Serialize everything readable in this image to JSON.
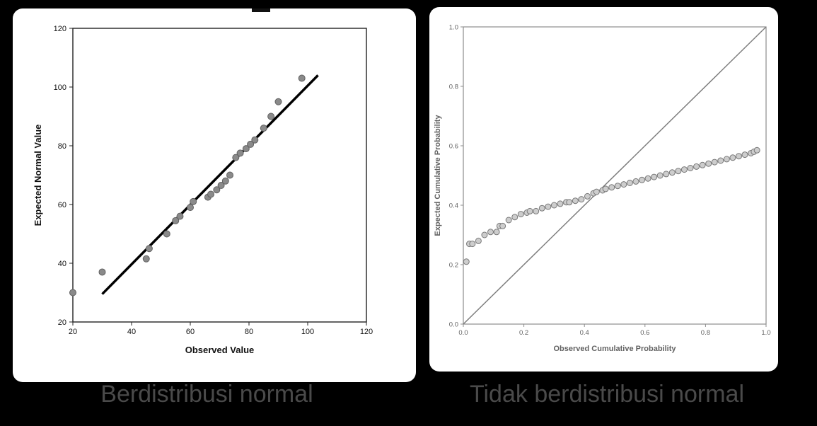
{
  "captions": {
    "left": "Berdistribusi normal",
    "right": "Tidak berdistribusi normal"
  },
  "colors": {
    "background": "#000000",
    "panel": "#ffffff",
    "caption_text": "#4a4a4a"
  },
  "chart_data": [
    {
      "id": "qq-plot",
      "type": "scatter",
      "title": "",
      "xlabel": "Observed Value",
      "ylabel": "Expected Normal Value",
      "xlim": [
        20,
        120
      ],
      "ylim": [
        20,
        120
      ],
      "xticks": [
        "20",
        "40",
        "60",
        "80",
        "100",
        "120"
      ],
      "yticks": [
        "20",
        "40",
        "60",
        "80",
        "100",
        "120"
      ],
      "grid": false,
      "frame_color": "#222222",
      "text_color": "#111111",
      "marker": {
        "fill": "#8a8a8a",
        "stroke": "#606060"
      },
      "fit_line": {
        "from": [
          30,
          29.5
        ],
        "to": [
          103.5,
          104
        ],
        "color": "#000000",
        "width": 3.5
      },
      "points": [
        [
          20,
          30
        ],
        [
          30,
          37
        ],
        [
          45,
          41.5
        ],
        [
          46,
          45
        ],
        [
          52,
          50
        ],
        [
          55,
          54.5
        ],
        [
          56.5,
          56
        ],
        [
          60,
          59
        ],
        [
          61,
          61
        ],
        [
          66,
          62.5
        ],
        [
          67,
          63.5
        ],
        [
          69,
          65
        ],
        [
          70.5,
          66.5
        ],
        [
          72,
          68
        ],
        [
          73.5,
          70
        ],
        [
          75.5,
          76
        ],
        [
          77,
          77.5
        ],
        [
          79,
          79
        ],
        [
          80.5,
          80.5
        ],
        [
          82,
          82
        ],
        [
          85,
          86
        ],
        [
          87.5,
          90
        ],
        [
          90,
          95
        ],
        [
          98,
          103
        ]
      ]
    },
    {
      "id": "pp-plot",
      "type": "scatter",
      "title": "",
      "xlabel": "Observed Cumulative Probability",
      "ylabel": "Expected Cumulative Probability",
      "xlim": [
        0,
        1
      ],
      "ylim": [
        0,
        1
      ],
      "xticks": [
        "0.0",
        "0.2",
        "0.4",
        "0.6",
        "0.8",
        "1.0"
      ],
      "yticks": [
        "0.0",
        "0.2",
        "0.4",
        "0.6",
        "0.8",
        "1.0"
      ],
      "grid": false,
      "frame_color": "#8c8c8c",
      "text_color": "#626262",
      "marker": {
        "fill": "#cdcdcd",
        "stroke": "#787878"
      },
      "fit_line": {
        "from": [
          0,
          0
        ],
        "to": [
          1,
          1
        ],
        "color": "#7d7d7d",
        "width": 1.5
      },
      "points": [
        [
          0.01,
          0.21
        ],
        [
          0.02,
          0.27
        ],
        [
          0.03,
          0.27
        ],
        [
          0.05,
          0.28
        ],
        [
          0.07,
          0.3
        ],
        [
          0.09,
          0.31
        ],
        [
          0.11,
          0.31
        ],
        [
          0.12,
          0.33
        ],
        [
          0.13,
          0.33
        ],
        [
          0.15,
          0.35
        ],
        [
          0.17,
          0.36
        ],
        [
          0.19,
          0.37
        ],
        [
          0.21,
          0.375
        ],
        [
          0.22,
          0.38
        ],
        [
          0.24,
          0.38
        ],
        [
          0.26,
          0.39
        ],
        [
          0.28,
          0.395
        ],
        [
          0.3,
          0.4
        ],
        [
          0.32,
          0.405
        ],
        [
          0.34,
          0.41
        ],
        [
          0.35,
          0.41
        ],
        [
          0.37,
          0.415
        ],
        [
          0.39,
          0.42
        ],
        [
          0.41,
          0.43
        ],
        [
          0.43,
          0.44
        ],
        [
          0.44,
          0.445
        ],
        [
          0.46,
          0.45
        ],
        [
          0.47,
          0.455
        ],
        [
          0.49,
          0.46
        ],
        [
          0.51,
          0.465
        ],
        [
          0.53,
          0.47
        ],
        [
          0.55,
          0.475
        ],
        [
          0.57,
          0.48
        ],
        [
          0.59,
          0.485
        ],
        [
          0.61,
          0.49
        ],
        [
          0.63,
          0.495
        ],
        [
          0.65,
          0.5
        ],
        [
          0.67,
          0.505
        ],
        [
          0.69,
          0.51
        ],
        [
          0.71,
          0.515
        ],
        [
          0.73,
          0.52
        ],
        [
          0.75,
          0.525
        ],
        [
          0.77,
          0.53
        ],
        [
          0.79,
          0.535
        ],
        [
          0.81,
          0.54
        ],
        [
          0.83,
          0.545
        ],
        [
          0.85,
          0.55
        ],
        [
          0.87,
          0.555
        ],
        [
          0.89,
          0.56
        ],
        [
          0.91,
          0.565
        ],
        [
          0.93,
          0.57
        ],
        [
          0.95,
          0.575
        ],
        [
          0.96,
          0.58
        ],
        [
          0.97,
          0.585
        ]
      ]
    }
  ]
}
